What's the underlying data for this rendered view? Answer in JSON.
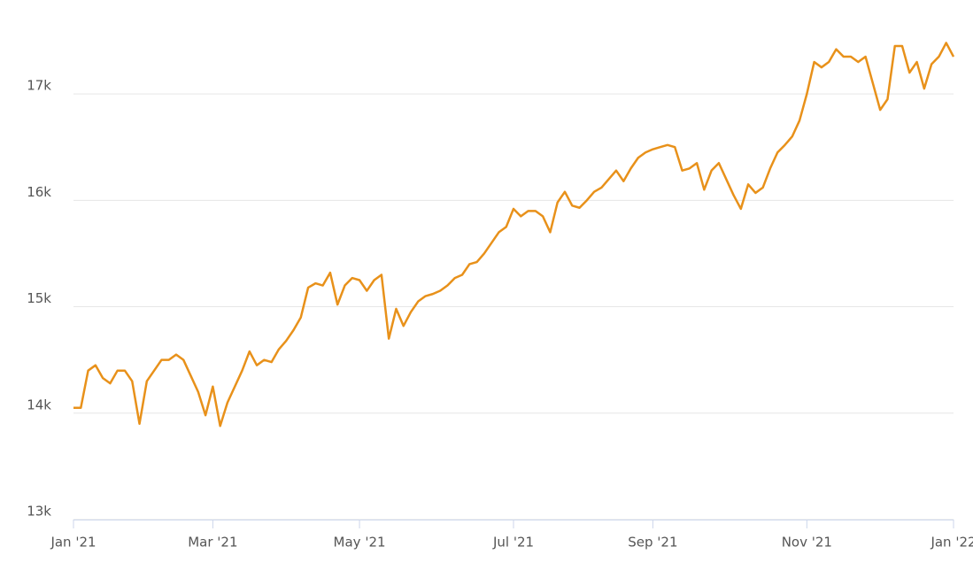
{
  "chart_data": {
    "type": "line",
    "categories": [
      "Jan '21",
      null,
      null,
      null,
      null,
      null,
      null,
      null,
      null,
      null,
      null,
      null,
      null,
      null,
      null,
      null,
      null,
      null,
      null,
      "Mar '21",
      null,
      null,
      null,
      null,
      null,
      null,
      null,
      null,
      null,
      null,
      null,
      null,
      null,
      null,
      null,
      null,
      null,
      null,
      null,
      "May '21",
      null,
      null,
      null,
      null,
      null,
      null,
      null,
      null,
      null,
      null,
      null,
      null,
      null,
      null,
      null,
      null,
      null,
      null,
      null,
      null,
      "Jul '21",
      null,
      null,
      null,
      null,
      null,
      null,
      null,
      null,
      null,
      null,
      null,
      null,
      null,
      null,
      null,
      null,
      null,
      null,
      "Sep '21",
      null,
      null,
      null,
      null,
      null,
      null,
      null,
      null,
      null,
      null,
      null,
      null,
      null,
      null,
      null,
      null,
      null,
      null,
      null,
      null,
      "Nov '21",
      null,
      null,
      null,
      null,
      null,
      null,
      null,
      null,
      null,
      null,
      null,
      null,
      null,
      null,
      null,
      null,
      null,
      null,
      null,
      "Jan '22"
    ],
    "series": [
      {
        "name": null,
        "color": "#e8911a",
        "values": [
          14050,
          14050,
          14400,
          14450,
          14330,
          14280,
          14400,
          14400,
          14300,
          13900,
          14300,
          14400,
          14500,
          14500,
          14550,
          14500,
          14350,
          14200,
          13980,
          14250,
          13880,
          14100,
          14250,
          14400,
          14580,
          14450,
          14500,
          14480,
          14600,
          14680,
          14780,
          14900,
          15180,
          15220,
          15200,
          15320,
          15020,
          15200,
          15270,
          15250,
          15150,
          15250,
          15300,
          14700,
          14980,
          14820,
          14950,
          15050,
          15100,
          15120,
          15150,
          15200,
          15270,
          15300,
          15400,
          15420,
          15500,
          15600,
          15700,
          15750,
          15920,
          15850,
          15900,
          15900,
          15850,
          15700,
          15980,
          16080,
          15950,
          15930,
          16000,
          16080,
          16120,
          16200,
          16280,
          16180,
          16300,
          16400,
          16450,
          16480,
          16500,
          16520,
          16500,
          16280,
          16300,
          16350,
          16100,
          16280,
          16350,
          16200,
          16050,
          15920,
          16150,
          16070,
          16120,
          16300,
          16450,
          16520,
          16600,
          16750,
          17000,
          17300,
          17250,
          17300,
          17420,
          17350,
          17350,
          17300,
          17350,
          17100,
          16850,
          16950,
          17450,
          17450,
          17200,
          17300,
          17050,
          17280,
          17350,
          17480,
          17350
        ]
      }
    ],
    "ylim": [
      13000,
      17550
    ],
    "yticks": [
      {
        "value": 13000,
        "label": "13k"
      },
      {
        "value": 14000,
        "label": "14k"
      },
      {
        "value": 15000,
        "label": "15k"
      },
      {
        "value": 16000,
        "label": "16k"
      },
      {
        "value": 17000,
        "label": "17k"
      }
    ],
    "grid": true
  }
}
